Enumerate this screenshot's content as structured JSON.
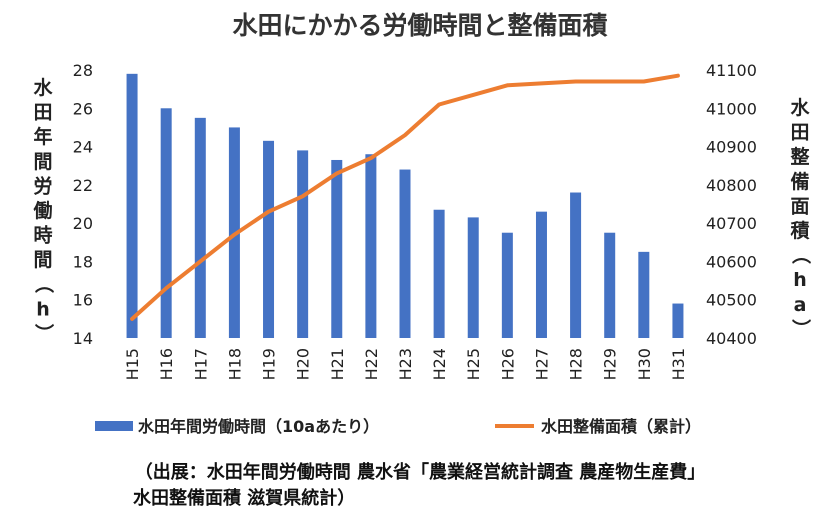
{
  "chart_data": {
    "type": "bar+line",
    "title": "水田にかかる労働時間と整備面積",
    "categories": [
      "H15",
      "H16",
      "H17",
      "H18",
      "H19",
      "H20",
      "H21",
      "H22",
      "H23",
      "H24",
      "H25",
      "H26",
      "H27",
      "H28",
      "H29",
      "H30",
      "H31"
    ],
    "series": [
      {
        "name": "水田年間労働時間（10aあたり）",
        "type": "bar",
        "axis": "left",
        "color": "#4472C4",
        "values": [
          27.8,
          26.0,
          25.5,
          25.0,
          24.3,
          23.8,
          23.3,
          23.6,
          22.8,
          20.7,
          20.3,
          19.5,
          20.6,
          21.6,
          19.5,
          18.5,
          15.8
        ]
      },
      {
        "name": "水田整備面積（累計）",
        "type": "line",
        "axis": "right",
        "color": "#ED7D31",
        "values": [
          40450,
          40530,
          40600,
          40670,
          40730,
          40770,
          40830,
          40870,
          40930,
          41010,
          41035,
          41060,
          41065,
          41070,
          41070,
          41070,
          41085
        ]
      }
    ],
    "ylabel_left": "水田年間労働時間（h）",
    "ylabel_right": "水田整備面積（ha）",
    "ylim_left": [
      14,
      28
    ],
    "ylim_right": [
      40400,
      41100
    ],
    "yticks_left": [
      14,
      16,
      18,
      20,
      22,
      24,
      26,
      28
    ],
    "yticks_right": [
      40400,
      40500,
      40600,
      40700,
      40800,
      40900,
      41000,
      41100
    ],
    "grid": false,
    "legend_position": "bottom"
  },
  "source": {
    "line1": "（出展：水田年間労働時間 農水省「農業経営統計調査 農産物生産費」",
    "line2": "水田整備面積 滋賀県統計）"
  }
}
